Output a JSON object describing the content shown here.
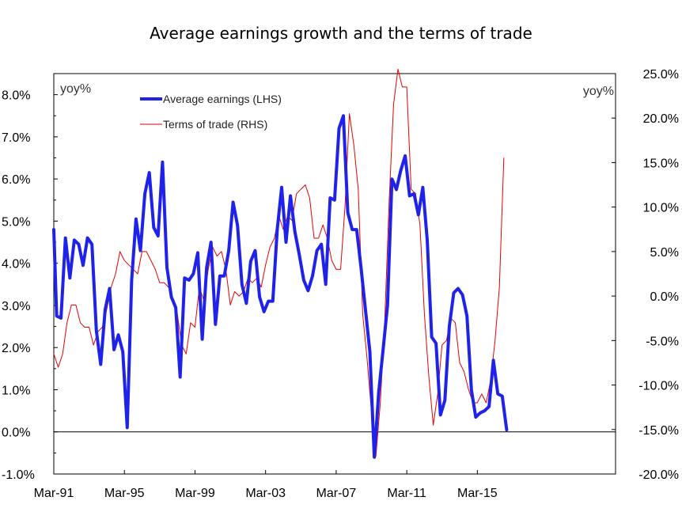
{
  "chart_data": {
    "type": "line",
    "title": "Average earnings growth and the terms of trade",
    "xlabel": "",
    "ylabel_left_unit": "yoy%",
    "ylabel_right_unit": "yoy%",
    "x_tick_labels": [
      "Mar-91",
      "Mar-95",
      "Mar-99",
      "Mar-03",
      "Mar-07",
      "Mar-11",
      "Mar-15"
    ],
    "x_range": [
      1991.17,
      2023.0
    ],
    "y_left": {
      "range": [
        -1.0,
        8.5
      ],
      "ticks": [
        -1.0,
        0.0,
        1.0,
        2.0,
        3.0,
        4.0,
        5.0,
        6.0,
        7.0,
        8.0
      ],
      "tick_labels": [
        "-1.0%",
        "0.0%",
        "1.0%",
        "2.0%",
        "3.0%",
        "4.0%",
        "5.0%",
        "6.0%",
        "7.0%",
        "8.0%"
      ]
    },
    "y_right": {
      "range": [
        -20.0,
        25.0
      ],
      "ticks": [
        -20,
        -15,
        -10,
        -5,
        0,
        5,
        10,
        15,
        20,
        25
      ],
      "tick_labels": [
        "-20.0%",
        "-15.0%",
        "-10.0%",
        "-5.0%",
        "0.0%",
        "5.0%",
        "10.0%",
        "15.0%",
        "20.0%",
        "25.0%"
      ]
    },
    "grid": false,
    "legend_placement": "top-left",
    "series": [
      {
        "name": "Average earnings (LHS)",
        "axis": "left",
        "color": "#1f22e8",
        "points": [
          [
            1991.17,
            4.8
          ],
          [
            1991.33,
            2.75
          ],
          [
            1991.58,
            2.7
          ],
          [
            1991.83,
            4.6
          ],
          [
            1992.08,
            3.65
          ],
          [
            1992.33,
            4.55
          ],
          [
            1992.58,
            4.45
          ],
          [
            1992.83,
            3.95
          ],
          [
            1993.08,
            4.6
          ],
          [
            1993.33,
            4.45
          ],
          [
            1993.58,
            2.4
          ],
          [
            1993.83,
            1.6
          ],
          [
            1994.08,
            2.9
          ],
          [
            1994.33,
            3.4
          ],
          [
            1994.58,
            1.95
          ],
          [
            1994.83,
            2.3
          ],
          [
            1995.08,
            1.9
          ],
          [
            1995.33,
            0.1
          ],
          [
            1995.58,
            3.6
          ],
          [
            1995.83,
            5.05
          ],
          [
            1996.08,
            4.3
          ],
          [
            1996.33,
            5.65
          ],
          [
            1996.58,
            6.15
          ],
          [
            1996.83,
            4.85
          ],
          [
            1997.08,
            4.65
          ],
          [
            1997.33,
            6.4
          ],
          [
            1997.58,
            3.9
          ],
          [
            1997.83,
            3.2
          ],
          [
            1998.08,
            2.95
          ],
          [
            1998.33,
            1.3
          ],
          [
            1998.58,
            3.65
          ],
          [
            1998.83,
            3.6
          ],
          [
            1999.08,
            3.75
          ],
          [
            1999.33,
            4.25
          ],
          [
            1999.58,
            2.2
          ],
          [
            1999.83,
            3.9
          ],
          [
            2000.08,
            4.5
          ],
          [
            2000.33,
            2.55
          ],
          [
            2000.58,
            3.7
          ],
          [
            2000.83,
            3.7
          ],
          [
            2001.08,
            4.3
          ],
          [
            2001.33,
            5.45
          ],
          [
            2001.58,
            4.9
          ],
          [
            2001.83,
            3.5
          ],
          [
            2002.08,
            3.05
          ],
          [
            2002.33,
            4.05
          ],
          [
            2002.58,
            4.3
          ],
          [
            2002.83,
            3.2
          ],
          [
            2003.08,
            2.85
          ],
          [
            2003.33,
            3.1
          ],
          [
            2003.58,
            3.1
          ],
          [
            2003.83,
            4.8
          ],
          [
            2004.08,
            5.8
          ],
          [
            2004.33,
            4.5
          ],
          [
            2004.58,
            5.6
          ],
          [
            2004.83,
            4.75
          ],
          [
            2005.08,
            4.2
          ],
          [
            2005.33,
            3.6
          ],
          [
            2005.58,
            3.35
          ],
          [
            2005.83,
            3.7
          ],
          [
            2006.08,
            4.3
          ],
          [
            2006.33,
            4.45
          ],
          [
            2006.58,
            3.5
          ],
          [
            2006.83,
            5.55
          ],
          [
            2007.08,
            5.5
          ],
          [
            2007.33,
            7.2
          ],
          [
            2007.58,
            7.5
          ],
          [
            2007.83,
            5.2
          ],
          [
            2008.08,
            4.8
          ],
          [
            2008.33,
            4.8
          ],
          [
            2008.58,
            3.9
          ],
          [
            2008.83,
            2.9
          ],
          [
            2009.08,
            1.9
          ],
          [
            2009.33,
            -0.6
          ],
          [
            2009.58,
            0.95
          ],
          [
            2009.83,
            1.95
          ],
          [
            2010.08,
            3.0
          ],
          [
            2010.33,
            6.0
          ],
          [
            2010.58,
            5.75
          ],
          [
            2010.83,
            6.2
          ],
          [
            2011.08,
            6.55
          ],
          [
            2011.33,
            5.6
          ],
          [
            2011.58,
            5.65
          ],
          [
            2011.83,
            5.15
          ],
          [
            2012.08,
            5.8
          ],
          [
            2012.33,
            4.55
          ],
          [
            2012.58,
            2.25
          ],
          [
            2012.83,
            2.1
          ],
          [
            2013.08,
            0.4
          ],
          [
            2013.33,
            0.75
          ],
          [
            2013.58,
            2.5
          ],
          [
            2013.83,
            3.3
          ],
          [
            2014.08,
            3.4
          ],
          [
            2014.33,
            3.25
          ],
          [
            2014.58,
            2.75
          ],
          [
            2014.83,
            1.0
          ],
          [
            2015.08,
            0.35
          ],
          [
            2015.33,
            0.45
          ],
          [
            2015.58,
            0.5
          ],
          [
            2015.83,
            0.6
          ],
          [
            2016.08,
            1.7
          ],
          [
            2016.33,
            0.9
          ],
          [
            2016.58,
            0.85
          ],
          [
            2016.83,
            0.05
          ]
        ]
      },
      {
        "name": "Terms of trade (RHS)",
        "axis": "right",
        "color": "#e60000",
        "points": [
          [
            1991.17,
            -6.5
          ],
          [
            1991.42,
            -8.0
          ],
          [
            1991.67,
            -6.5
          ],
          [
            1991.92,
            -3.0
          ],
          [
            1992.17,
            -1.0
          ],
          [
            1992.42,
            -1.0
          ],
          [
            1992.67,
            -3.0
          ],
          [
            1992.92,
            -3.5
          ],
          [
            1993.17,
            -3.5
          ],
          [
            1993.42,
            -5.5
          ],
          [
            1993.67,
            -4.0
          ],
          [
            1993.92,
            -3.5
          ],
          [
            1994.17,
            -1.5
          ],
          [
            1994.42,
            1.0
          ],
          [
            1994.67,
            2.5
          ],
          [
            1994.92,
            5.0
          ],
          [
            1995.17,
            4.0
          ],
          [
            1995.42,
            3.5
          ],
          [
            1995.67,
            3.0
          ],
          [
            1995.92,
            2.5
          ],
          [
            1996.17,
            5.0
          ],
          [
            1996.42,
            5.0
          ],
          [
            1996.67,
            4.0
          ],
          [
            1996.92,
            3.0
          ],
          [
            1997.17,
            1.5
          ],
          [
            1997.42,
            1.5
          ],
          [
            1997.67,
            1.0
          ],
          [
            1997.92,
            -0.5
          ],
          [
            1998.17,
            -2.0
          ],
          [
            1998.42,
            -5.5
          ],
          [
            1998.67,
            -6.5
          ],
          [
            1998.92,
            -3.0
          ],
          [
            1999.17,
            -3.5
          ],
          [
            1999.42,
            1.0
          ],
          [
            1999.67,
            -0.5
          ],
          [
            1999.92,
            3.0
          ],
          [
            2000.17,
            5.5
          ],
          [
            2000.42,
            4.5
          ],
          [
            2000.67,
            5.0
          ],
          [
            2000.92,
            3.0
          ],
          [
            2001.17,
            -1.0
          ],
          [
            2001.42,
            0.5
          ],
          [
            2001.67,
            0.0
          ],
          [
            2001.92,
            0.5
          ],
          [
            2002.17,
            2.0
          ],
          [
            2002.42,
            1.5
          ],
          [
            2002.67,
            2.0
          ],
          [
            2002.92,
            1.0
          ],
          [
            2003.17,
            3.5
          ],
          [
            2003.42,
            5.5
          ],
          [
            2003.67,
            6.5
          ],
          [
            2003.92,
            9.0
          ],
          [
            2004.17,
            7.5
          ],
          [
            2004.42,
            9.0
          ],
          [
            2004.67,
            8.5
          ],
          [
            2004.92,
            11.5
          ],
          [
            2005.17,
            12.0
          ],
          [
            2005.42,
            12.5
          ],
          [
            2005.67,
            11.0
          ],
          [
            2005.92,
            6.5
          ],
          [
            2006.17,
            6.5
          ],
          [
            2006.42,
            8.0
          ],
          [
            2006.67,
            6.5
          ],
          [
            2006.92,
            4.0
          ],
          [
            2007.17,
            3.0
          ],
          [
            2007.42,
            3.0
          ],
          [
            2007.67,
            10.0
          ],
          [
            2007.92,
            20.5
          ],
          [
            2008.17,
            17.0
          ],
          [
            2008.42,
            12.0
          ],
          [
            2008.67,
            -2.0
          ],
          [
            2008.92,
            -7.0
          ],
          [
            2009.17,
            -13.0
          ],
          [
            2009.42,
            -18.0
          ],
          [
            2009.67,
            -12.0
          ],
          [
            2009.92,
            -3.0
          ],
          [
            2010.17,
            10.5
          ],
          [
            2010.42,
            21.5
          ],
          [
            2010.67,
            25.5
          ],
          [
            2010.92,
            23.5
          ],
          [
            2011.17,
            23.5
          ],
          [
            2011.42,
            12.0
          ],
          [
            2011.67,
            11.5
          ],
          [
            2011.92,
            8.0
          ],
          [
            2012.17,
            -2.0
          ],
          [
            2012.42,
            -9.0
          ],
          [
            2012.67,
            -14.5
          ],
          [
            2012.92,
            -11.0
          ],
          [
            2013.17,
            -5.5
          ],
          [
            2013.42,
            -5.0
          ],
          [
            2013.67,
            -2.5
          ],
          [
            2013.92,
            -3.0
          ],
          [
            2014.17,
            -7.5
          ],
          [
            2014.42,
            -8.5
          ],
          [
            2014.67,
            -10.5
          ],
          [
            2014.92,
            -12.0
          ],
          [
            2015.17,
            -12.0
          ],
          [
            2015.42,
            -11.0
          ],
          [
            2015.67,
            -12.0
          ],
          [
            2015.92,
            -9.5
          ],
          [
            2016.17,
            -5.0
          ],
          [
            2016.42,
            1.0
          ],
          [
            2016.67,
            15.5
          ]
        ]
      }
    ]
  }
}
